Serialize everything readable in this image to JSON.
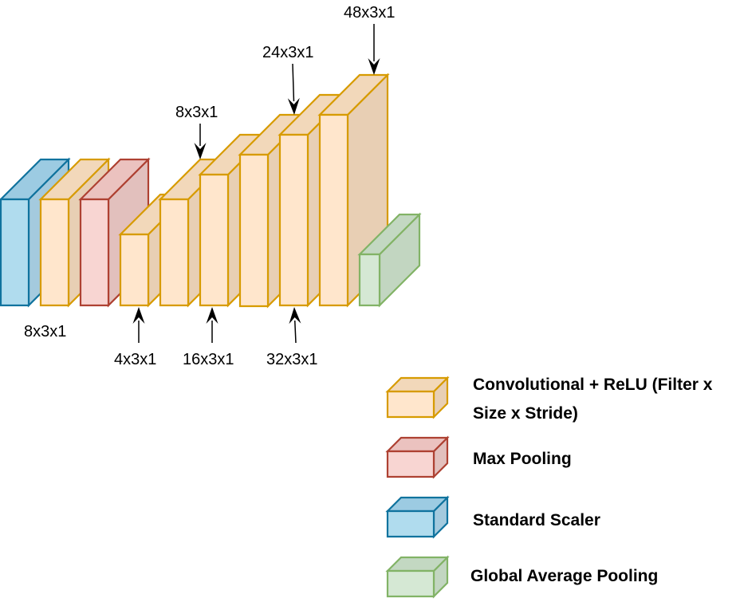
{
  "colors": {
    "conv": {
      "front": "#ffe6cc",
      "top": "#f2d8ba",
      "side": "#e8cfb4",
      "stroke": "#d79b00"
    },
    "pool": {
      "front": "#f8d5d2",
      "top": "#ebc2bf",
      "side": "#e2c0bd",
      "stroke": "#ae4132"
    },
    "scaler": {
      "front": "#b0dcee",
      "top": "#9ccbe2",
      "side": "#a4cade",
      "stroke": "#10739e"
    },
    "gap": {
      "front": "#d5e8d4",
      "top": "#c3d8c2",
      "side": "#c2d6c1",
      "stroke": "#82b366"
    }
  },
  "labels": {
    "scaler_filter": "8x3x1",
    "conv1": "8x3x1",
    "conv2": "4x3x1",
    "conv3": "16x3x1",
    "conv4": "24x3x1",
    "conv5": "32x3x1",
    "conv6": "48x3x1"
  },
  "legend": {
    "conv_line1": "Convolutional + ReLU (Filter x",
    "conv_line2": "Size x Stride)",
    "pool": "Max Pooling",
    "scaler": "Standard Scaler",
    "gap": "Global Average Pooling"
  }
}
